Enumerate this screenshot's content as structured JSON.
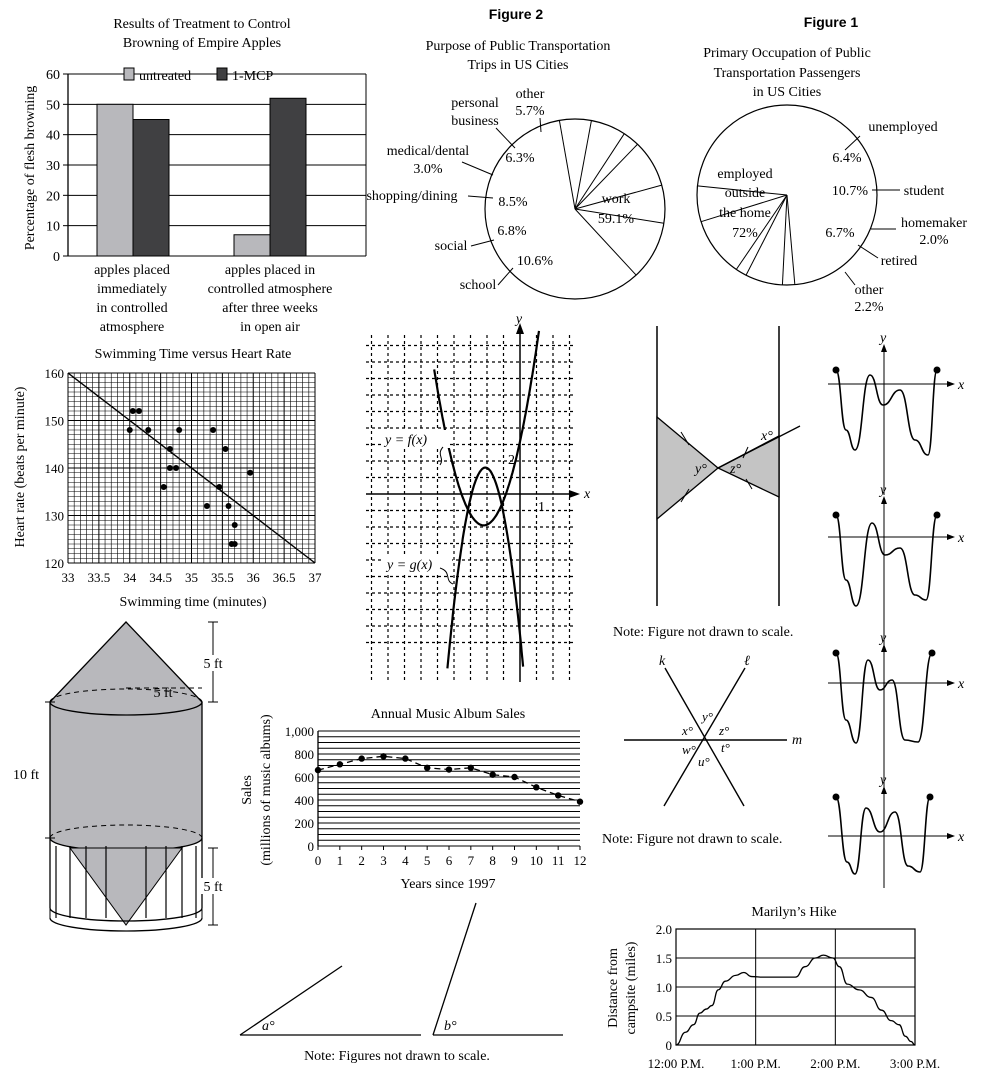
{
  "chart_data": [
    {
      "type": "bar",
      "title_lines": [
        "Results of Treatment to Control",
        "Browning of Empire Apples"
      ],
      "ylabel": "Percentage of flesh browning",
      "ylim": [
        0,
        60
      ],
      "yticks": [
        "0",
        "10",
        "20",
        "30",
        "40",
        "50",
        "60"
      ],
      "legend_position": "top-right",
      "categories": [
        [
          "apples placed",
          "immediately",
          "in controlled",
          "atmosphere"
        ],
        [
          "apples placed in",
          "controlled atmosphere",
          "after three weeks",
          "in open air"
        ]
      ],
      "series": [
        {
          "name": "untreated",
          "values": [
            50,
            7
          ],
          "color": "#b8b8bc"
        },
        {
          "name": "1-MCP",
          "values": [
            45,
            52
          ],
          "color": "#404042"
        }
      ]
    },
    {
      "type": "pie",
      "figure_label": "Figure 2",
      "title_lines": [
        "Purpose of Public Transportation",
        "Trips in US Cities"
      ],
      "slices": [
        {
          "label": "work",
          "value": 59.1,
          "text": "59.1%"
        },
        {
          "label": "school",
          "value": 10.6,
          "text": "10.6%"
        },
        {
          "label": "social",
          "value": 6.8,
          "text": "6.8%"
        },
        {
          "label": "shopping/dining",
          "value": 8.5,
          "text": "8.5%"
        },
        {
          "label": "medical/dental",
          "value": 3.0,
          "text": "3.0%"
        },
        {
          "label": "personal business",
          "value": 6.3,
          "text": "6.3%"
        },
        {
          "label": "other",
          "value": 5.7,
          "text": "5.7%"
        }
      ]
    },
    {
      "type": "pie",
      "figure_label": "Figure 1",
      "title_lines": [
        "Primary Occupation of Public",
        "Transportation Passengers",
        "in US Cities"
      ],
      "slices": [
        {
          "label": "employed outside the home",
          "value": 72,
          "text": "72%"
        },
        {
          "label": "unemployed",
          "value": 6.4,
          "text": "6.4%"
        },
        {
          "label": "student",
          "value": 10.7,
          "text": "10.7%"
        },
        {
          "label": "homemaker",
          "value": 2.0,
          "text": "2.0%"
        },
        {
          "label": "retired",
          "value": 6.7,
          "text": "6.7%"
        },
        {
          "label": "other",
          "value": 2.2,
          "text": "2.2%"
        }
      ]
    },
    {
      "type": "scatter",
      "title": "Swimming Time versus Heart Rate",
      "xlabel": "Swimming time (minutes)",
      "ylabel": "Heart rate (beats per minute)",
      "xlim": [
        33,
        37
      ],
      "ylim": [
        120,
        160
      ],
      "xticks": [
        "33",
        "33.5",
        "34",
        "34.5",
        "35",
        "35.5",
        "36",
        "36.5",
        "37"
      ],
      "yticks": [
        "120",
        "130",
        "140",
        "150",
        "160"
      ],
      "points": [
        [
          34.0,
          148
        ],
        [
          34.05,
          152
        ],
        [
          34.15,
          152
        ],
        [
          34.3,
          148
        ],
        [
          34.55,
          136
        ],
        [
          34.65,
          144
        ],
        [
          34.65,
          140
        ],
        [
          34.75,
          140
        ],
        [
          34.8,
          148
        ],
        [
          35.25,
          132
        ],
        [
          35.35,
          148
        ],
        [
          35.45,
          136
        ],
        [
          35.55,
          144
        ],
        [
          35.6,
          132
        ],
        [
          35.65,
          124
        ],
        [
          35.7,
          124
        ],
        [
          35.7,
          128
        ],
        [
          35.95,
          139
        ]
      ],
      "fit_line": [
        [
          33,
          160
        ],
        [
          37,
          120
        ]
      ]
    },
    {
      "type": "line",
      "description_labels": {
        "f": "y = f(x)",
        "g": "y = g(x)",
        "x": "x",
        "y": "y",
        "tick_x": "1",
        "tick_y": "2"
      }
    },
    {
      "type": "line",
      "title": "Annual Music Album Sales",
      "xlabel": "Years since 1997",
      "ylabel_lines": [
        "Sales",
        "(millions of music albums)"
      ],
      "xlim": [
        0,
        12
      ],
      "ylim": [
        0,
        1000
      ],
      "xticks": [
        "0",
        "1",
        "2",
        "3",
        "4",
        "5",
        "6",
        "7",
        "8",
        "9",
        "10",
        "11",
        "12"
      ],
      "yticks": [
        "0",
        "200",
        "400",
        "600",
        "800",
        "1,000"
      ],
      "x": [
        0,
        1,
        2,
        3,
        4,
        5,
        6,
        7,
        8,
        9,
        10,
        11,
        12
      ],
      "y": [
        660,
        710,
        760,
        780,
        760,
        680,
        665,
        680,
        620,
        600,
        510,
        440,
        385
      ]
    },
    {
      "type": "line",
      "title": "Marilyn’s Hike",
      "ylabel_lines": [
        "Distance from",
        "campsite (miles)"
      ],
      "ylim": [
        0,
        2.0
      ],
      "yticks": [
        "0",
        "0.5",
        "1.0",
        "1.5",
        "2.0"
      ],
      "xticks": [
        "12:00 P.M.",
        "1:00 P.M.",
        "2:00 P.M.",
        "3:00 P.M."
      ],
      "points": [
        [
          0,
          0
        ],
        [
          0.12,
          0.22
        ],
        [
          0.22,
          0.35
        ],
        [
          0.3,
          0.55
        ],
        [
          0.38,
          0.62
        ],
        [
          0.45,
          0.68
        ],
        [
          0.53,
          0.95
        ],
        [
          0.62,
          1.1
        ],
        [
          0.75,
          1.2
        ],
        [
          0.85,
          1.25
        ],
        [
          0.95,
          1.18
        ],
        [
          1.1,
          1.17
        ],
        [
          1.3,
          1.17
        ],
        [
          1.5,
          1.17
        ],
        [
          1.62,
          1.35
        ],
        [
          1.75,
          1.5
        ],
        [
          1.85,
          1.55
        ],
        [
          1.97,
          1.5
        ],
        [
          2.05,
          1.35
        ],
        [
          2.15,
          1.05
        ],
        [
          2.3,
          0.95
        ],
        [
          2.45,
          0.82
        ],
        [
          2.58,
          0.6
        ],
        [
          2.7,
          0.42
        ],
        [
          2.8,
          0.35
        ],
        [
          2.88,
          0.15
        ],
        [
          2.95,
          0.06
        ],
        [
          3.0,
          0
        ]
      ]
    }
  ],
  "labels": {
    "pie2": {
      "personal": "personal",
      "business": "business",
      "other": "other",
      "other_pct": "5.7%",
      "med": "medical/dental",
      "med_pct": "3.0%",
      "shop": "shopping/dining",
      "social": "social",
      "school": "school",
      "work": "work",
      "work_pct": "59.1%",
      "p63": "6.3%",
      "p85": "8.5%",
      "p68": "6.8%",
      "p106": "10.6%"
    },
    "pie1": {
      "emp1": "employed",
      "emp2": "outside",
      "emp3": "the home",
      "emp4": "72%",
      "unemp": "unemployed",
      "p64": "6.4%",
      "p107": "10.7%",
      "student": "student",
      "homemaker": "homemaker",
      "p20": "2.0%",
      "p67": "6.7%",
      "retired": "retired",
      "other": "other",
      "p22": "2.2%"
    },
    "geo1": {
      "x": "x°",
      "y": "y°",
      "z": "z°",
      "note": "Note: Figure not drawn to scale."
    },
    "lines": {
      "k": "k",
      "l": "ℓ",
      "m": "m",
      "x": "x°",
      "y": "y°",
      "z": "z°",
      "w": "w°",
      "t": "t°",
      "u": "u°",
      "note": "Note:  Figure not drawn to scale."
    },
    "silo": {
      "top": "5 ft",
      "radius": "5 ft",
      "mid": "10 ft",
      "bottom": "5 ft"
    },
    "angles": {
      "a": "a°",
      "b": "b°",
      "note": "Note: Figures not drawn to scale."
    },
    "minis": {
      "x": "x",
      "y": "y"
    }
  }
}
